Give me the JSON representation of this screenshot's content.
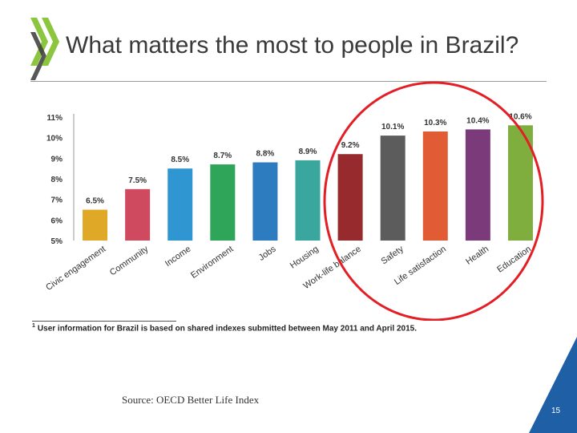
{
  "slide": {
    "title": "What matters the most to people in Brazil?",
    "footnote_marker": "1",
    "footnote": "User information for Brazil is based on shared indexes submitted between May 2011 and April 2015.",
    "source": "Source: OECD Better Life Index",
    "page_number": "15"
  },
  "colors": {
    "logo": "#8cc63f",
    "logo_dark": "#3a3a3a",
    "corner": "#1f5fa6",
    "highlight_circle": "#e31e24"
  },
  "chart_data": {
    "type": "bar",
    "categories": [
      "Civic engagement",
      "Community",
      "Income",
      "Environment",
      "Jobs",
      "Housing",
      "Work-life balance",
      "Safety",
      "Life satisfaction",
      "Health",
      "Education"
    ],
    "values": [
      6.5,
      7.5,
      8.5,
      8.7,
      8.8,
      8.9,
      9.2,
      10.1,
      10.3,
      10.4,
      10.6
    ],
    "data_labels": [
      "6.5%",
      "7.5%",
      "8.5%",
      "8.7%",
      "8.8%",
      "8.9%",
      "9.2%",
      "10.1%",
      "10.3%",
      "10.4%",
      "10.6%"
    ],
    "colors": [
      "#dfa826",
      "#d04a5f",
      "#2f96d2",
      "#2fa55a",
      "#2e7cc0",
      "#3aa79e",
      "#962a2c",
      "#5c5c5c",
      "#e15c34",
      "#7b3a7a",
      "#7fae3f"
    ],
    "yticks": [
      "5%",
      "6%",
      "7%",
      "8%",
      "9%",
      "10%",
      "11%"
    ],
    "ylim": [
      5,
      11
    ],
    "grid": false,
    "legend": "none"
  }
}
